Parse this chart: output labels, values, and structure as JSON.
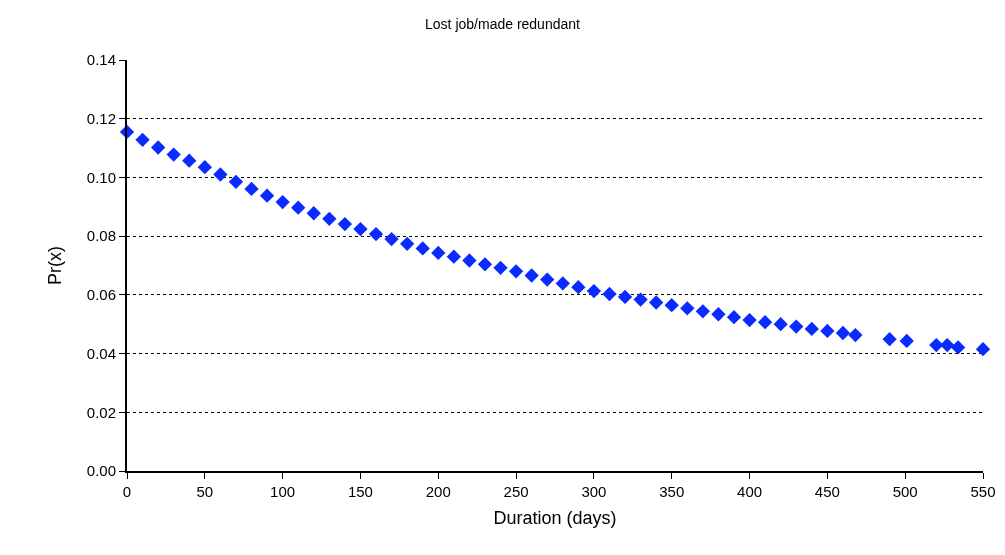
{
  "chart_data": {
    "type": "scatter",
    "title": "Lost job/made redundant",
    "xlabel": "Duration (days)",
    "ylabel": "Pr(x)",
    "marker": "diamond",
    "grid": "y",
    "color": "#0a2bff",
    "x": [
      0,
      10,
      20,
      30,
      40,
      50,
      60,
      70,
      80,
      90,
      100,
      110,
      120,
      130,
      140,
      150,
      160,
      170,
      180,
      190,
      200,
      210,
      220,
      230,
      240,
      250,
      260,
      270,
      280,
      290,
      300,
      310,
      320,
      330,
      340,
      350,
      360,
      370,
      380,
      390,
      400,
      410,
      420,
      430,
      440,
      450,
      460,
      468,
      490,
      501,
      520,
      527,
      534,
      550
    ],
    "values": [
      0.1155,
      0.1128,
      0.1102,
      0.1078,
      0.1057,
      0.1035,
      0.101,
      0.0985,
      0.0961,
      0.0938,
      0.0916,
      0.0897,
      0.0878,
      0.0859,
      0.0841,
      0.0824,
      0.0807,
      0.079,
      0.0774,
      0.0758,
      0.0743,
      0.073,
      0.0717,
      0.0704,
      0.0692,
      0.068,
      0.0666,
      0.0652,
      0.0639,
      0.0626,
      0.0613,
      0.0603,
      0.0593,
      0.0584,
      0.0574,
      0.0565,
      0.0554,
      0.0544,
      0.0534,
      0.0524,
      0.0514,
      0.0507,
      0.05,
      0.0492,
      0.0484,
      0.0477,
      0.047,
      0.0463,
      0.0449,
      0.0443,
      0.0429,
      0.0429,
      0.0421,
      0.0415
    ],
    "xlim": [
      0,
      550
    ],
    "xticks": [
      0,
      50,
      100,
      150,
      200,
      250,
      300,
      350,
      400,
      450,
      500,
      550
    ],
    "ylim": [
      0,
      0.14
    ],
    "yticks": [
      {
        "value": 0,
        "label": "0.00"
      },
      {
        "value": 0.02,
        "label": "0.02"
      },
      {
        "value": 0.04,
        "label": "0.04"
      },
      {
        "value": 0.06,
        "label": "0.06"
      },
      {
        "value": 0.08,
        "label": "0.08"
      },
      {
        "value": 0.1,
        "label": "0.10"
      },
      {
        "value": 0.12,
        "label": "0.12"
      },
      {
        "value": 0.14,
        "label": "0.14"
      }
    ]
  }
}
